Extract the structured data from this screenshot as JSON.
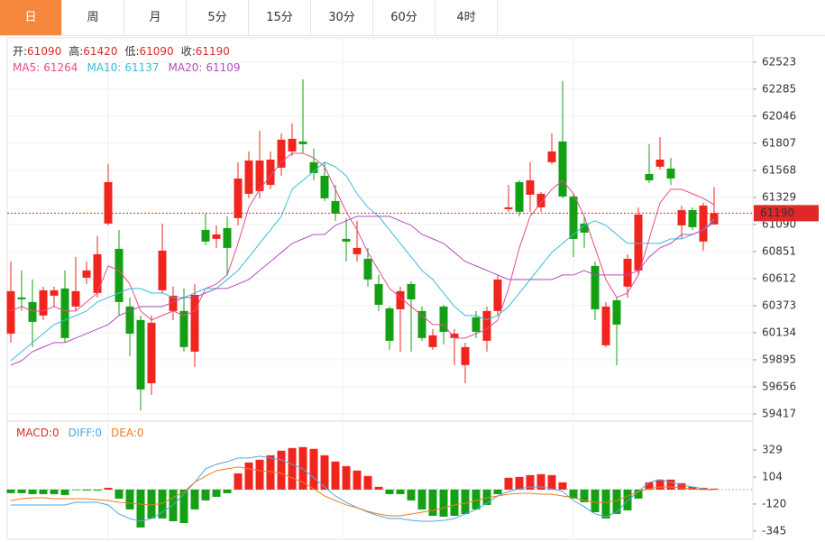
{
  "tabs": [
    "日",
    "周",
    "月",
    "5分",
    "15分",
    "30分",
    "60分",
    "4时"
  ],
  "active_tab": 0,
  "chart_data": [
    {
      "type": "candlestick",
      "up_color": "#f0261e",
      "down_color": "#14a014",
      "label_color": "#e02828",
      "grid": true,
      "ylim": [
        59369,
        62738
      ],
      "yticks": [
        62523,
        62285,
        62046,
        61807,
        61568,
        61329,
        61090,
        60851,
        60612,
        60373,
        60134,
        59895,
        59656,
        59417
      ],
      "info_labels": [
        "开:",
        "高:",
        "低:",
        "收:"
      ],
      "open": [
        60126,
        60445,
        60405,
        60286,
        60461,
        60525,
        60365,
        60620,
        60485,
        61098,
        60875,
        60365,
        60246,
        59688,
        60509,
        60326,
        60326,
        59967,
        61042,
        60963,
        61058,
        61146,
        61361,
        61385,
        61440,
        61592,
        61735,
        61823,
        61640,
        61520,
        61297,
        60963,
        60827,
        60787,
        60564,
        60349,
        60341,
        60564,
        60326,
        60007,
        60365,
        60087,
        59848,
        60270,
        60063,
        60326,
        61225,
        61464,
        61353,
        61241,
        61640,
        61823,
        61337,
        61098,
        60724,
        60023,
        60421,
        60541,
        60684,
        61536,
        61600,
        61584,
        61082,
        61217,
        60939,
        61090
      ],
      "high": [
        60763,
        60684,
        60604,
        60541,
        60541,
        60684,
        60803,
        60763,
        60986,
        61624,
        61042,
        60445,
        60286,
        60286,
        61098,
        60541,
        60525,
        60564,
        61186,
        61082,
        61162,
        61640,
        61735,
        61918,
        61735,
        61894,
        61982,
        62372,
        61759,
        61640,
        61440,
        61146,
        61122,
        60883,
        60644,
        60365,
        60541,
        60588,
        60365,
        60166,
        60381,
        60166,
        60047,
        60326,
        60365,
        60644,
        61440,
        61480,
        61640,
        61377,
        61894,
        62356,
        61361,
        61162,
        60763,
        60405,
        60445,
        60827,
        61241,
        61799,
        61863,
        61679,
        61257,
        61241,
        61281,
        61420
      ],
      "low": [
        60047,
        60326,
        60007,
        60246,
        60365,
        60047,
        60326,
        60564,
        60445,
        61082,
        60286,
        59927,
        59449,
        59585,
        60485,
        60246,
        59967,
        59832,
        60907,
        60883,
        60644,
        61082,
        61321,
        61321,
        61401,
        61520,
        61695,
        61719,
        61480,
        61297,
        61122,
        60763,
        60763,
        60541,
        60326,
        59983,
        59967,
        59967,
        60063,
        59983,
        60031,
        59848,
        59688,
        60087,
        59967,
        60286,
        61202,
        61162,
        61202,
        61202,
        61624,
        61321,
        60803,
        60883,
        60246,
        60007,
        59848,
        60445,
        60644,
        61456,
        61576,
        61440,
        60963,
        61042,
        60859,
        61090
      ],
      "close": [
        60501,
        60429,
        60230,
        60509,
        60509,
        60087,
        60501,
        60684,
        60827,
        61464,
        60405,
        60126,
        59633,
        60222,
        60859,
        60461,
        60007,
        60469,
        60939,
        61002,
        60883,
        61496,
        61655,
        61655,
        61663,
        61839,
        61847,
        61799,
        61544,
        61321,
        61186,
        60939,
        60883,
        60604,
        60381,
        60063,
        60501,
        60429,
        60087,
        60111,
        60142,
        60126,
        60007,
        60142,
        60326,
        60604,
        61241,
        61202,
        61480,
        61361,
        61735,
        61337,
        60963,
        61018,
        60341,
        60365,
        60206,
        60787,
        61178,
        61480,
        61663,
        61496,
        61217,
        61066,
        61257,
        61190
      ],
      "series": [
        {
          "name": "MA5:",
          "color": "#e64a8c",
          "values": [
            60326,
            60365,
            60326,
            60326,
            60365,
            60326,
            60326,
            60405,
            60485,
            60724,
            60684,
            60564,
            60326,
            60246,
            60286,
            60326,
            60286,
            60326,
            60525,
            60564,
            60644,
            60923,
            61241,
            61401,
            61520,
            61640,
            61719,
            61719,
            61679,
            61600,
            61401,
            61202,
            61042,
            60843,
            60684,
            60525,
            60445,
            60365,
            60286,
            60206,
            60206,
            60087,
            60087,
            60126,
            60166,
            60246,
            60525,
            60883,
            61162,
            61281,
            61401,
            61480,
            61361,
            61162,
            60883,
            60604,
            60445,
            60485,
            60644,
            60963,
            61281,
            61401,
            61401,
            61361,
            61321,
            61264
          ]
        },
        {
          "name": "MA10:",
          "color": "#36bcd8",
          "values": [
            59887,
            59967,
            60047,
            60126,
            60206,
            60246,
            60286,
            60326,
            60405,
            60445,
            60485,
            60525,
            60525,
            60485,
            60485,
            60445,
            60445,
            60485,
            60525,
            60525,
            60604,
            60684,
            60803,
            60923,
            61042,
            61162,
            61401,
            61480,
            61560,
            61640,
            61600,
            61520,
            61361,
            61241,
            61162,
            61042,
            60923,
            60803,
            60684,
            60604,
            60485,
            60365,
            60286,
            60286,
            60246,
            60286,
            60365,
            60485,
            60604,
            60724,
            60843,
            60923,
            61002,
            61082,
            61122,
            61082,
            61002,
            60923,
            60923,
            60923,
            60923,
            60963,
            60963,
            61002,
            61042,
            61137
          ]
        },
        {
          "name": "MA20:",
          "color": "#b44cc0",
          "values": [
            59848,
            59887,
            59967,
            60007,
            60047,
            60047,
            60087,
            60126,
            60166,
            60206,
            60286,
            60326,
            60365,
            60365,
            60365,
            60405,
            60445,
            60445,
            60485,
            60525,
            60525,
            60564,
            60604,
            60684,
            60763,
            60843,
            60923,
            60963,
            61002,
            61002,
            61082,
            61122,
            61162,
            61162,
            61162,
            61162,
            61122,
            61082,
            61002,
            60963,
            60923,
            60843,
            60763,
            60724,
            60684,
            60644,
            60604,
            60604,
            60604,
            60604,
            60604,
            60644,
            60644,
            60684,
            60644,
            60644,
            60644,
            60644,
            60684,
            60803,
            60883,
            60923,
            61002,
            61002,
            61042,
            61109
          ]
        }
      ]
    },
    {
      "type": "macd",
      "up_color": "#f0261e",
      "down_color": "#14a014",
      "ylim": [
        -413,
        546
      ],
      "yticks": [
        329,
        104,
        -120,
        -345
      ],
      "readout": [
        {
          "label": "MACD:",
          "value": 0,
          "color": "#e02828"
        },
        {
          "label": "DIFF:",
          "value": 0,
          "color": "#4ea6e6"
        },
        {
          "label": "DEA:",
          "value": 0,
          "color": "#f07a1e"
        }
      ],
      "values": [
        -30,
        -30,
        -38,
        -38,
        -38,
        -45,
        -5,
        -8,
        -8,
        15,
        -75,
        -165,
        -315,
        -240,
        -240,
        -263,
        -278,
        -165,
        -90,
        -60,
        -30,
        135,
        225,
        248,
        285,
        323,
        345,
        353,
        338,
        285,
        233,
        195,
        158,
        113,
        23,
        -38,
        -38,
        -90,
        -165,
        -218,
        -225,
        -218,
        -203,
        -165,
        -128,
        -38,
        98,
        105,
        120,
        128,
        120,
        60,
        -75,
        -105,
        -188,
        -240,
        -203,
        -173,
        -75,
        60,
        83,
        83,
        53,
        23,
        15,
        8
      ],
      "series": [
        {
          "name": "DIFF",
          "color": "#4ea6e6",
          "values": [
            -128,
            -128,
            -128,
            -128,
            -128,
            -128,
            -106,
            -106,
            -106,
            -128,
            -203,
            -241,
            -263,
            -241,
            -188,
            -128,
            -38,
            60,
            172,
            210,
            232,
            262,
            262,
            277,
            262,
            247,
            210,
            172,
            97,
            22,
            -53,
            -106,
            -150,
            -188,
            -218,
            -241,
            -241,
            -256,
            -263,
            -263,
            -256,
            -241,
            -203,
            -166,
            -113,
            -53,
            -16,
            7,
            22,
            22,
            7,
            -16,
            -91,
            -143,
            -203,
            -226,
            -188,
            -91,
            -16,
            60,
            82,
            60,
            37,
            22,
            7,
            -1
          ]
        },
        {
          "name": "DEA",
          "color": "#f07a1e",
          "values": [
            -91,
            -76,
            -68,
            -68,
            -76,
            -76,
            -76,
            -76,
            -83,
            -91,
            -106,
            -113,
            -121,
            -128,
            -113,
            -68,
            -16,
            60,
            112,
            157,
            172,
            187,
            172,
            157,
            150,
            135,
            97,
            60,
            7,
            -53,
            -91,
            -128,
            -151,
            -181,
            -203,
            -218,
            -218,
            -203,
            -188,
            -173,
            -151,
            -128,
            -113,
            -91,
            -68,
            -53,
            -38,
            -31,
            -31,
            -38,
            -38,
            -53,
            -68,
            -91,
            -106,
            -106,
            -91,
            -53,
            -16,
            7,
            22,
            22,
            14,
            7,
            -1,
            -1
          ]
        }
      ]
    }
  ]
}
